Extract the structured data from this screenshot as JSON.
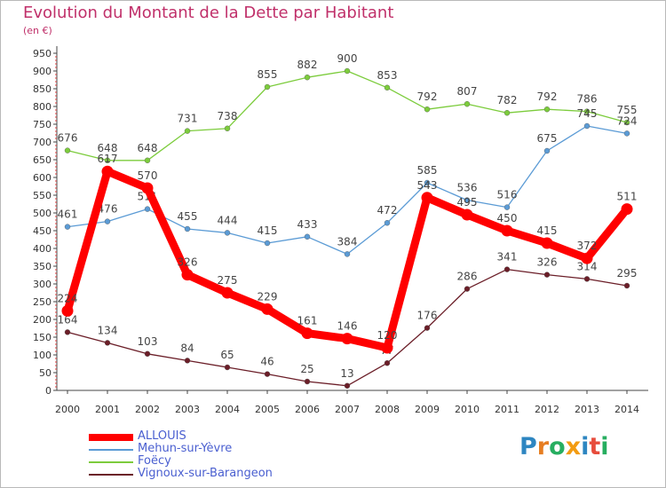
{
  "title": "Evolution du Montant de la Dette par Habitant",
  "unit_label": "(en €)",
  "logo_text": "Proxiti",
  "chart_data": {
    "type": "line",
    "title": "Evolution du Montant de la Dette par Habitant",
    "subtitle": "(en €)",
    "x": [
      2000,
      2001,
      2002,
      2003,
      2004,
      2005,
      2006,
      2007,
      2008,
      2009,
      2010,
      2011,
      2012,
      2013,
      2014
    ],
    "ylim": [
      0,
      950
    ],
    "yticks": [
      0,
      50,
      100,
      150,
      200,
      250,
      300,
      350,
      400,
      450,
      500,
      550,
      600,
      650,
      700,
      750,
      800,
      850,
      900,
      950
    ],
    "grid": false,
    "legend_position": "bottom-left",
    "series": [
      {
        "name": "Vignoux-sur-Barangeon",
        "color": "#6b1e28",
        "values": [
          164,
          134,
          103,
          84,
          65,
          46,
          25,
          13,
          77,
          176,
          286,
          341,
          326,
          314,
          295
        ]
      },
      {
        "name": "Foëcy",
        "color": "#7ccc3c",
        "values": [
          676,
          648,
          648,
          731,
          738,
          855,
          882,
          900,
          853,
          792,
          807,
          782,
          792,
          786,
          755
        ]
      },
      {
        "name": "Mehun-sur-Yèvre",
        "color": "#5b9bd5",
        "values": [
          461,
          476,
          511,
          455,
          444,
          415,
          433,
          384,
          472,
          585,
          536,
          516,
          675,
          745,
          724
        ]
      },
      {
        "name": "ALLOUIS",
        "color": "#ff0000",
        "values": [
          224,
          617,
          570,
          326,
          275,
          229,
          161,
          146,
          120,
          543,
          495,
          450,
          415,
          372,
          511
        ]
      }
    ],
    "legend": [
      "ALLOUIS",
      "Mehun-sur-Yèvre",
      "Foëcy",
      "Vignoux-sur-Barangeon"
    ]
  }
}
